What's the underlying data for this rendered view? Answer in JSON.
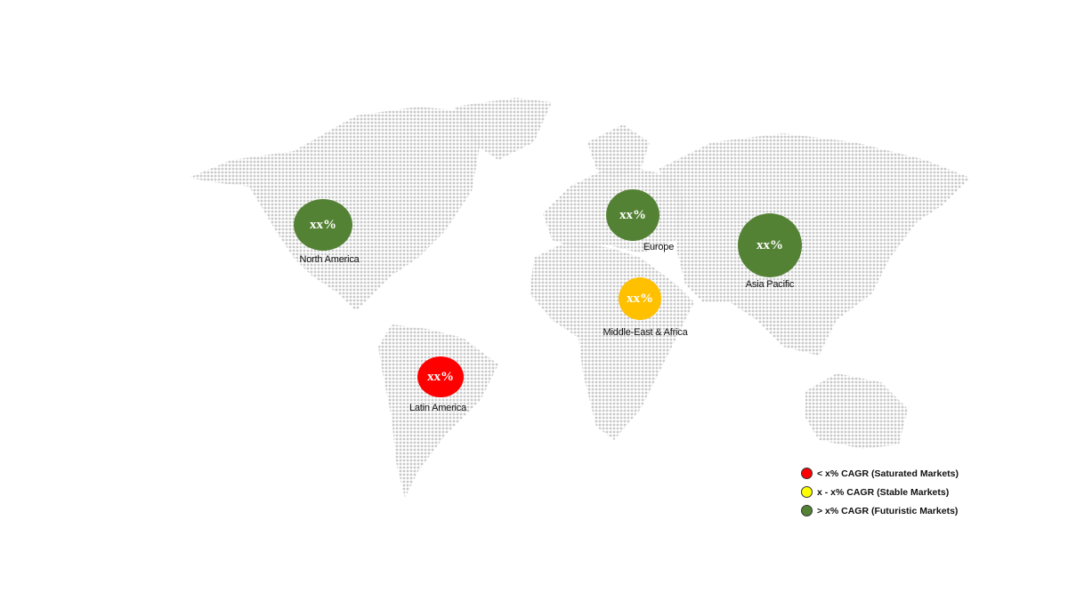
{
  "regions": [
    {
      "name": "North America",
      "value": "xx%",
      "color": "#548235"
    },
    {
      "name": "Europe",
      "value": "xx%",
      "color": "#548235"
    },
    {
      "name": "Asia Pacific",
      "value": "xx%",
      "color": "#548235"
    },
    {
      "name": "Middle-East & Africa",
      "value": "xx%",
      "color": "#FFC000"
    },
    {
      "name": "Latin America",
      "value": "xx%",
      "color": "#FF0000"
    }
  ],
  "legend": [
    {
      "label": "< x% CAGR (Saturated Markets)",
      "color": "#FF0000"
    },
    {
      "label": "x - x% CAGR (Stable Markets)",
      "color": "#FFFF00"
    },
    {
      "label": "> x% CAGR (Futuristic Markets)",
      "color": "#548235"
    }
  ],
  "map_dot_color": "#c8c8c8"
}
